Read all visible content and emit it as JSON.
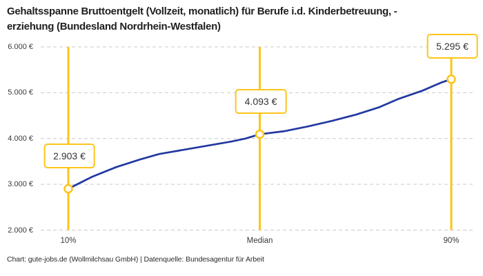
{
  "title": {
    "line1": "Gehaltsspanne Bruttoentgelt (Vollzeit, monatlich) für Berufe i.d. Kinderbetreuung, -",
    "line2": "erziehung (Bundesland Nordrhein-Westfalen)"
  },
  "footer": {
    "text": "Chart: gute-jobs.de (Wollmilchsau GmbH) | Datenquelle: Bundesagentur für Arbeit"
  },
  "chart_data": {
    "type": "line",
    "title": "Gehaltsspanne Bruttoentgelt (Vollzeit, monatlich) für Berufe i.d. Kinderbetreuung, -erziehung (Bundesland Nordrhein-Westfalen)",
    "xlabel": "",
    "ylabel": "",
    "ylim": [
      2000,
      6000
    ],
    "grid": {
      "axis": "y",
      "style": "dashed"
    },
    "legend": "none",
    "x_axis": {
      "categories": [
        "10%",
        "Median",
        "90%"
      ]
    },
    "y_axis": {
      "ticks": [
        "6.000 €",
        "5.000 €",
        "4.000 €",
        "3.000 €",
        "2.000 €"
      ],
      "tick_values": [
        6000,
        5000,
        4000,
        3000,
        2000
      ],
      "unit": "€"
    },
    "highlights": [
      {
        "key": "p10",
        "percentile": 10,
        "value": 2903,
        "label": "2.903 €",
        "x_label": "10%"
      },
      {
        "key": "median",
        "percentile": 50,
        "value": 4093,
        "label": "4.093 €",
        "x_label": "Median"
      },
      {
        "key": "p90",
        "percentile": 90,
        "value": 5295,
        "label": "5.295 €",
        "x_label": "90%"
      }
    ],
    "curve": [
      [
        10,
        2903
      ],
      [
        15,
        3166
      ],
      [
        20,
        3376
      ],
      [
        25,
        3542
      ],
      [
        29,
        3662
      ],
      [
        34,
        3752
      ],
      [
        39,
        3842
      ],
      [
        44,
        3933
      ],
      [
        47,
        4000
      ],
      [
        50,
        4093
      ],
      [
        55,
        4158
      ],
      [
        60,
        4263
      ],
      [
        65,
        4384
      ],
      [
        70,
        4519
      ],
      [
        75,
        4685
      ],
      [
        79,
        4865
      ],
      [
        84,
        5046
      ],
      [
        88,
        5226
      ],
      [
        90,
        5295
      ]
    ],
    "colors": {
      "line": "#2239A0",
      "accent": "#FCC419",
      "grid": "#C9C9C9",
      "marker_fill": "#FFFFFF"
    }
  }
}
